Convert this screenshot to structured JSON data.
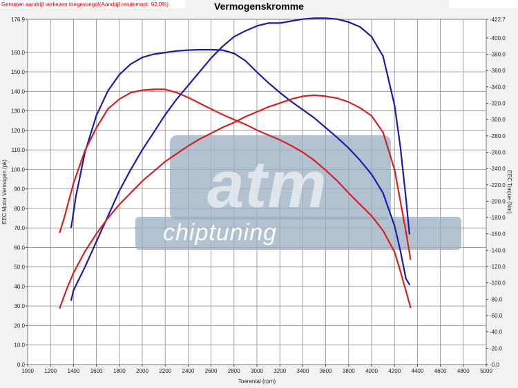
{
  "header": {
    "title": "Vermogenskromme",
    "note": "Gemeten aandrijf verliezen toegevoegd!(Aandrijf rendement: 92.0%)"
  },
  "watermark": {
    "brand": "atm",
    "sub": "chiptuning",
    "color": "#9aaec0"
  },
  "chart_data": {
    "type": "line",
    "title": "Vermogenskromme",
    "xlabel": "Toerental (rpm)",
    "ylabel": "EEC Motor Vermogen (pk)",
    "y2label": "EEC Torque (Nm)",
    "xlim": [
      1000,
      5000
    ],
    "ylim": [
      0,
      176.9
    ],
    "y2lim": [
      0,
      422.7
    ],
    "grid": true,
    "x_ticks": [
      "1000",
      "1200",
      "1400",
      "1600",
      "1800",
      "2000",
      "2200",
      "2400",
      "2600",
      "2800",
      "3000",
      "3200",
      "3400",
      "3600",
      "3800",
      "4000",
      "4200",
      "4400",
      "4600",
      "4800",
      "5000"
    ],
    "y_ticks": [
      "0.0",
      "10.0",
      "20.0",
      "30.0",
      "40.0",
      "50.0",
      "60.0",
      "70.0",
      "80.0",
      "90.0",
      "100.0",
      "110.0",
      "120.0",
      "130.0",
      "140.0",
      "150.0",
      "160.0",
      "176.9"
    ],
    "y2_ticks": [
      "0.0",
      "20.0",
      "40.0",
      "60.0",
      "80.0",
      "100.0",
      "120.0",
      "140.0",
      "160.0",
      "180.0",
      "200.0",
      "220.0",
      "240.0",
      "260.0",
      "280.0",
      "300.0",
      "320.0",
      "340.0",
      "360.0",
      "380.0",
      "400.0",
      "422.7"
    ],
    "series": [
      {
        "role": "torque_tuned",
        "axis": "right",
        "color": "#1a1aa8",
        "x": [
          1380,
          1420,
          1500,
          1600,
          1700,
          1800,
          1900,
          2000,
          2100,
          2200,
          2300,
          2400,
          2500,
          2600,
          2700,
          2800,
          2900,
          3000,
          3100,
          3200,
          3300,
          3400,
          3500,
          3600,
          3700,
          3800,
          3900,
          4000,
          4100,
          4150,
          4200,
          4250,
          4300,
          4330
        ],
        "y": [
          168,
          205,
          260,
          305,
          335,
          355,
          368,
          376,
          380,
          382,
          384,
          385,
          385.5,
          385.5,
          385,
          381,
          372,
          358,
          345,
          333,
          322,
          312,
          302,
          290,
          278,
          265,
          250,
          233,
          210,
          190,
          170,
          140,
          105,
          98
        ]
      },
      {
        "role": "torque_stock",
        "axis": "right",
        "color": "#d42020",
        "x": [
          1280,
          1320,
          1400,
          1500,
          1600,
          1700,
          1800,
          1900,
          2000,
          2100,
          2200,
          2300,
          2400,
          2500,
          2600,
          2700,
          2800,
          2900,
          3000,
          3100,
          3200,
          3300,
          3400,
          3500,
          3600,
          3700,
          3800,
          3900,
          4000,
          4100,
          4200,
          4250,
          4300,
          4340
        ],
        "y": [
          162,
          180,
          222,
          262,
          290,
          313,
          325,
          333,
          336,
          337,
          337,
          333,
          327,
          320,
          313,
          306,
          300,
          294,
          287,
          281,
          275,
          268,
          260,
          250,
          238,
          225,
          210,
          196,
          182,
          164,
          138,
          115,
          90,
          70
        ]
      },
      {
        "role": "power_tuned",
        "axis": "left",
        "color": "#1a1aa8",
        "x": [
          1380,
          1400,
          1500,
          1600,
          1700,
          1800,
          1900,
          2000,
          2100,
          2200,
          2300,
          2400,
          2500,
          2600,
          2700,
          2800,
          2900,
          3000,
          3100,
          3200,
          3300,
          3400,
          3500,
          3600,
          3700,
          3800,
          3900,
          4000,
          4100,
          4200,
          4250,
          4300,
          4330
        ],
        "y": [
          33,
          38,
          50,
          63,
          76,
          89,
          100,
          110,
          119,
          128,
          136,
          143,
          150,
          157,
          163,
          168,
          171,
          173.5,
          175,
          175,
          176,
          177,
          177.5,
          177.5,
          177,
          175.5,
          173,
          168,
          158,
          133,
          112,
          85,
          67
        ]
      },
      {
        "role": "power_stock",
        "axis": "left",
        "color": "#d42020",
        "x": [
          1280,
          1350,
          1400,
          1500,
          1600,
          1700,
          1800,
          1900,
          2000,
          2100,
          2200,
          2300,
          2400,
          2500,
          2600,
          2700,
          2800,
          2900,
          3000,
          3100,
          3200,
          3300,
          3400,
          3500,
          3600,
          3700,
          3800,
          3900,
          4000,
          4100,
          4200,
          4250,
          4300,
          4340
        ],
        "y": [
          29,
          40,
          47,
          58,
          67,
          75,
          82,
          88,
          94,
          99,
          104,
          108,
          112,
          115.5,
          118.5,
          121.5,
          124,
          127,
          129.5,
          132,
          134,
          136,
          137.5,
          138,
          137.5,
          136.5,
          134.5,
          131.5,
          127.5,
          119,
          100,
          84,
          68,
          54
        ]
      }
    ]
  }
}
